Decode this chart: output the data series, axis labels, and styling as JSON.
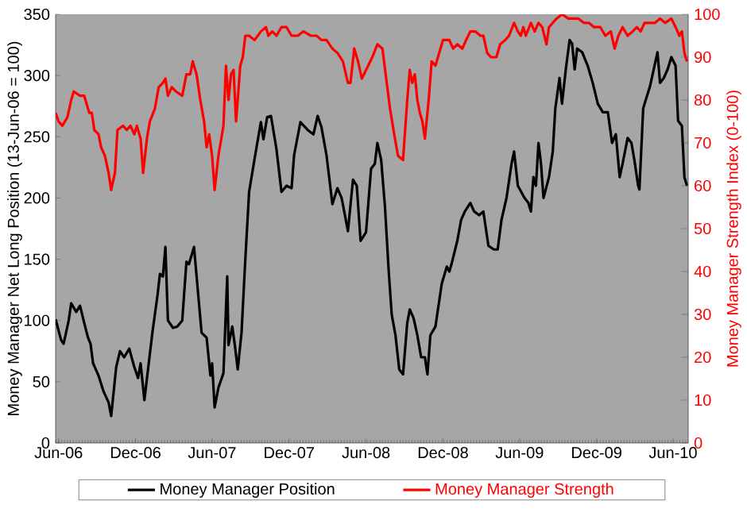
{
  "chart_data": {
    "type": "line",
    "ylabel": "Money Manager Net Long Position (13-Jun-06 = 100)",
    "y2label": "Money Manager Strength Index (0-100)",
    "xlim": [
      "2006-05-25",
      "2010-07-07"
    ],
    "xticks": [
      {
        "value": "2006-06-01",
        "label": "Jun-06"
      },
      {
        "value": "2006-12-01",
        "label": "Dec-06"
      },
      {
        "value": "2007-06-01",
        "label": "Jun-07"
      },
      {
        "value": "2007-12-01",
        "label": "Dec-07"
      },
      {
        "value": "2008-06-01",
        "label": "Jun-08"
      },
      {
        "value": "2008-12-01",
        "label": "Dec-08"
      },
      {
        "value": "2009-06-01",
        "label": "Jun-09"
      },
      {
        "value": "2009-12-01",
        "label": "Dec-09"
      },
      {
        "value": "2010-06-01",
        "label": "Jun-10"
      }
    ],
    "ylim": [
      0,
      350
    ],
    "yticks": [
      0,
      50,
      100,
      150,
      200,
      250,
      300,
      350
    ],
    "y2lim": [
      0,
      100
    ],
    "y2ticks": [
      0,
      10,
      20,
      30,
      40,
      50,
      60,
      70,
      80,
      90,
      100
    ],
    "legend": "bottom",
    "series": [
      {
        "name": "Money Manager Position",
        "color": "#000000",
        "x": [
          "2006-05-25",
          "2006-06-07",
          "2006-06-13",
          "2006-06-25",
          "2006-07-01",
          "2006-07-13",
          "2006-07-22",
          "2006-08-01",
          "2006-08-10",
          "2006-08-16",
          "2006-08-22",
          "2006-09-04",
          "2006-09-16",
          "2006-09-28",
          "2006-10-04",
          "2006-10-16",
          "2006-10-25",
          "2006-11-04",
          "2006-11-16",
          "2006-11-28",
          "2006-12-07",
          "2006-12-13",
          "2006-12-22",
          "2007-01-10",
          "2007-01-22",
          "2007-01-28",
          "2007-02-04",
          "2007-02-10",
          "2007-02-16",
          "2007-02-28",
          "2007-03-10",
          "2007-03-22",
          "2007-04-01",
          "2007-04-07",
          "2007-04-19",
          "2007-04-28",
          "2007-05-07",
          "2007-05-19",
          "2007-05-28",
          "2007-06-01",
          "2007-06-07",
          "2007-06-16",
          "2007-06-28",
          "2007-07-07",
          "2007-07-10",
          "2007-07-19",
          "2007-07-25",
          "2007-08-01",
          "2007-08-10",
          "2007-08-19",
          "2007-08-28",
          "2007-09-10",
          "2007-09-25",
          "2007-10-01",
          "2007-10-10",
          "2007-10-19",
          "2007-11-01",
          "2007-11-13",
          "2007-11-25",
          "2007-12-07",
          "2007-12-13",
          "2007-12-28",
          "2008-01-16",
          "2008-01-28",
          "2008-02-07",
          "2008-02-16",
          "2008-02-28",
          "2008-03-13",
          "2008-03-25",
          "2008-04-04",
          "2008-04-19",
          "2008-05-01",
          "2008-05-10",
          "2008-05-19",
          "2008-06-01",
          "2008-06-13",
          "2008-06-22",
          "2008-06-28",
          "2008-07-07",
          "2008-07-16",
          "2008-07-25",
          "2008-08-01",
          "2008-08-10",
          "2008-08-19",
          "2008-08-28",
          "2008-09-07",
          "2008-09-13",
          "2008-09-22",
          "2008-10-01",
          "2008-10-10",
          "2008-10-19",
          "2008-10-25",
          "2008-11-01",
          "2008-11-13",
          "2008-11-28",
          "2008-12-10",
          "2008-12-16",
          "2008-12-22",
          "2009-01-04",
          "2009-01-13",
          "2009-01-22",
          "2009-02-04",
          "2009-02-13",
          "2009-02-25",
          "2009-03-07",
          "2009-03-19",
          "2009-04-01",
          "2009-04-10",
          "2009-04-19",
          "2009-05-01",
          "2009-05-13",
          "2009-05-19",
          "2009-05-28",
          "2009-06-13",
          "2009-06-22",
          "2009-06-28",
          "2009-07-04",
          "2009-07-10",
          "2009-07-16",
          "2009-07-22",
          "2009-07-28",
          "2009-08-10",
          "2009-08-19",
          "2009-08-25",
          "2009-09-04",
          "2009-09-10",
          "2009-09-19",
          "2009-09-28",
          "2009-10-04",
          "2009-10-10",
          "2009-10-16",
          "2009-10-28",
          "2009-11-10",
          "2009-11-22",
          "2009-12-04",
          "2009-12-16",
          "2009-12-28",
          "2010-01-07",
          "2010-01-16",
          "2010-01-25",
          "2010-02-01",
          "2010-02-13",
          "2010-02-22",
          "2010-03-01",
          "2010-03-10",
          "2010-03-13",
          "2010-03-22",
          "2010-03-28",
          "2010-04-07",
          "2010-04-16",
          "2010-04-25",
          "2010-05-01",
          "2010-05-10",
          "2010-05-19",
          "2010-05-28",
          "2010-06-07",
          "2010-06-13",
          "2010-06-22",
          "2010-06-28",
          "2010-07-04"
        ],
        "values": [
          101,
          84,
          81,
          100,
          114,
          107,
          112,
          98,
          86,
          81,
          65,
          55,
          42,
          33,
          22,
          62,
          75,
          70,
          77,
          62,
          53,
          65,
          35,
          90,
          120,
          138,
          136,
          160,
          100,
          94,
          95,
          100,
          148,
          146,
          160,
          125,
          90,
          86,
          55,
          65,
          29,
          45,
          57,
          136,
          80,
          95,
          80,
          60,
          90,
          150,
          205,
          232,
          262,
          248,
          266,
          267,
          240,
          205,
          210,
          208,
          235,
          262,
          255,
          252,
          267,
          258,
          235,
          195,
          208,
          200,
          173,
          215,
          210,
          165,
          172,
          224,
          228,
          245,
          231,
          193,
          140,
          105,
          88,
          60,
          56,
          98,
          109,
          102,
          88,
          70,
          70,
          56,
          88,
          95,
          130,
          144,
          140,
          147,
          165,
          182,
          189,
          196,
          189,
          186,
          189,
          161,
          158,
          158,
          182,
          200,
          228,
          238,
          210,
          200,
          196,
          189,
          217,
          210,
          245,
          228,
          200,
          217,
          238,
          273,
          298,
          277,
          305,
          329,
          326,
          305,
          322,
          319,
          308,
          294,
          277,
          270,
          270,
          245,
          252,
          217,
          228,
          249,
          245,
          231,
          210,
          207,
          273,
          280,
          291,
          305,
          319,
          294,
          298,
          305,
          315,
          308,
          263,
          259,
          217,
          210
        ]
      },
      {
        "name": "Money Manager Strength",
        "color": "#ff0000",
        "axis": "y2",
        "x": [
          "2006-05-25",
          "2006-06-01",
          "2006-06-10",
          "2006-06-22",
          "2006-07-01",
          "2006-07-07",
          "2006-07-22",
          "2006-08-01",
          "2006-08-07",
          "2006-08-13",
          "2006-08-19",
          "2006-08-25",
          "2006-09-04",
          "2006-09-10",
          "2006-09-19",
          "2006-09-28",
          "2006-10-04",
          "2006-10-13",
          "2006-10-19",
          "2006-11-01",
          "2006-11-10",
          "2006-11-19",
          "2006-11-28",
          "2006-12-04",
          "2006-12-13",
          "2006-12-19",
          "2006-12-28",
          "2007-01-04",
          "2007-01-16",
          "2007-01-25",
          "2007-02-04",
          "2007-02-10",
          "2007-02-16",
          "2007-02-25",
          "2007-03-07",
          "2007-03-22",
          "2007-04-01",
          "2007-04-10",
          "2007-04-16",
          "2007-04-25",
          "2007-05-04",
          "2007-05-13",
          "2007-05-19",
          "2007-05-25",
          "2007-06-01",
          "2007-06-07",
          "2007-06-16",
          "2007-06-28",
          "2007-07-04",
          "2007-07-10",
          "2007-07-16",
          "2007-07-22",
          "2007-07-28",
          "2007-08-07",
          "2007-08-13",
          "2007-08-19",
          "2007-08-28",
          "2007-09-10",
          "2007-09-25",
          "2007-10-07",
          "2007-10-13",
          "2007-10-22",
          "2007-11-01",
          "2007-11-13",
          "2007-11-25",
          "2007-12-07",
          "2007-12-22",
          "2008-01-04",
          "2008-01-22",
          "2008-02-04",
          "2008-02-16",
          "2008-02-28",
          "2008-03-13",
          "2008-03-25",
          "2008-04-07",
          "2008-04-19",
          "2008-04-25",
          "2008-05-04",
          "2008-05-13",
          "2008-05-22",
          "2008-06-01",
          "2008-06-16",
          "2008-06-28",
          "2008-07-10",
          "2008-07-19",
          "2008-07-28",
          "2008-08-07",
          "2008-08-16",
          "2008-08-28",
          "2008-09-07",
          "2008-09-13",
          "2008-09-19",
          "2008-09-25",
          "2008-10-01",
          "2008-10-07",
          "2008-10-13",
          "2008-10-19",
          "2008-10-28",
          "2008-11-04",
          "2008-11-13",
          "2008-11-25",
          "2008-12-01",
          "2008-12-16",
          "2008-12-25",
          "2009-01-04",
          "2009-01-16",
          "2009-01-25",
          "2009-02-04",
          "2009-02-16",
          "2009-02-28",
          "2009-03-07",
          "2009-03-16",
          "2009-03-25",
          "2009-04-07",
          "2009-04-16",
          "2009-04-28",
          "2009-05-07",
          "2009-05-19",
          "2009-05-28",
          "2009-06-04",
          "2009-06-10",
          "2009-06-16",
          "2009-06-28",
          "2009-07-07",
          "2009-07-16",
          "2009-07-25",
          "2009-08-04",
          "2009-08-10",
          "2009-08-19",
          "2009-08-28",
          "2009-09-10",
          "2009-09-25",
          "2009-10-07",
          "2009-10-19",
          "2009-11-01",
          "2009-11-13",
          "2009-11-25",
          "2009-12-10",
          "2009-12-22",
          "2010-01-04",
          "2010-01-13",
          "2010-01-22",
          "2010-02-01",
          "2010-02-13",
          "2010-02-25",
          "2010-03-07",
          "2010-03-16",
          "2010-03-25",
          "2010-04-07",
          "2010-04-19",
          "2010-05-01",
          "2010-05-13",
          "2010-05-28",
          "2010-06-07",
          "2010-06-16",
          "2010-06-22",
          "2010-06-28",
          "2010-07-04"
        ],
        "values": [
          77,
          75,
          74,
          76,
          80,
          82,
          81,
          81,
          79,
          77,
          77,
          73,
          72,
          69,
          67,
          63,
          59,
          63,
          73,
          74,
          73,
          74,
          72,
          74,
          71,
          63,
          71,
          75,
          78,
          83,
          84,
          85,
          81,
          83,
          82,
          81,
          86,
          86,
          89,
          86,
          80,
          75,
          69,
          72,
          67,
          59,
          67,
          74,
          88,
          80,
          86,
          87,
          75,
          88,
          90,
          95,
          95,
          94,
          96,
          97,
          95,
          96,
          95,
          97,
          97,
          95,
          95,
          96,
          95,
          95,
          94,
          94,
          92,
          91,
          89,
          84,
          84,
          92,
          89,
          85,
          87,
          90,
          93,
          92,
          85,
          78,
          72,
          67,
          66,
          80,
          87,
          84,
          86,
          80,
          77,
          75,
          71,
          80,
          89,
          88,
          92,
          94,
          94,
          92,
          93,
          92,
          94,
          96,
          96,
          95,
          95,
          91,
          90,
          90,
          93,
          94,
          95,
          98,
          96,
          95,
          97,
          95,
          98,
          96,
          98,
          97,
          93,
          97,
          98,
          99,
          100,
          99,
          99,
          99,
          98,
          98,
          97,
          97,
          95,
          96,
          92,
          95,
          97,
          95,
          96,
          97,
          96,
          98,
          98,
          98,
          99,
          98,
          99,
          97,
          95,
          96,
          91,
          89
        ]
      }
    ]
  }
}
